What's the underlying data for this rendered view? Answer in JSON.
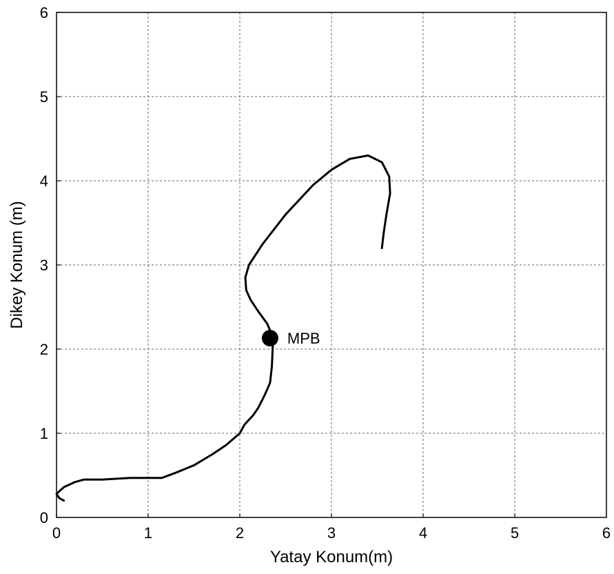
{
  "chart_data": {
    "type": "line",
    "title": "",
    "xlabel": "Yatay Konum(m)",
    "ylabel": "Dikey Konum (m)",
    "xlim": [
      0,
      6
    ],
    "ylim": [
      0,
      6
    ],
    "xticks": [
      0,
      1,
      2,
      3,
      4,
      5,
      6
    ],
    "yticks": [
      0,
      1,
      2,
      3,
      4,
      5,
      6
    ],
    "xtick_labels": [
      "0",
      "1",
      "2",
      "3",
      "4",
      "5",
      "6"
    ],
    "ytick_labels": [
      "0",
      "1",
      "2",
      "3",
      "4",
      "5",
      "6"
    ],
    "grid": true,
    "legend": "none",
    "line_color": "#000000",
    "series": [
      {
        "x": [
          0.08,
          0.03,
          0.0,
          0.08,
          0.2,
          0.3,
          0.5,
          0.8,
          1.0,
          1.15,
          1.3,
          1.5,
          1.7,
          1.85,
          2.0,
          2.05,
          2.15,
          2.2,
          2.27,
          2.33,
          2.35,
          2.36,
          2.35,
          2.3,
          2.2,
          2.12,
          2.07,
          2.06,
          2.1,
          2.25,
          2.5,
          2.8,
          3.0,
          3.2,
          3.4,
          3.55,
          3.63,
          3.64,
          3.6,
          3.57,
          3.55
        ],
        "y": [
          0.2,
          0.23,
          0.28,
          0.36,
          0.42,
          0.45,
          0.45,
          0.47,
          0.47,
          0.47,
          0.53,
          0.62,
          0.75,
          0.86,
          1.0,
          1.1,
          1.22,
          1.3,
          1.45,
          1.6,
          1.8,
          2.05,
          2.17,
          2.3,
          2.45,
          2.58,
          2.7,
          2.85,
          3.0,
          3.25,
          3.6,
          3.95,
          4.13,
          4.26,
          4.3,
          4.22,
          4.05,
          3.85,
          3.6,
          3.38,
          3.2
        ]
      }
    ],
    "points": [
      {
        "label": "MPB",
        "x": 2.33,
        "y": 2.13
      }
    ]
  }
}
